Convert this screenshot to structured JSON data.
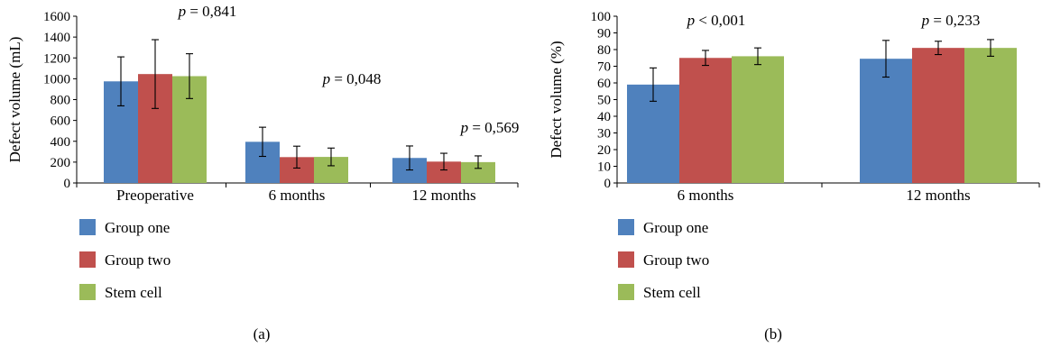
{
  "chart_data": [
    {
      "type": "bar",
      "panel_label": "(a)",
      "categories": [
        "Preoperative",
        "6 months",
        "12 months"
      ],
      "series": [
        {
          "name": "Group one",
          "color": "#4F81BD",
          "values": [
            975,
            395,
            240
          ],
          "errors": [
            235,
            140,
            115
          ]
        },
        {
          "name": "Group two",
          "color": "#C0504D",
          "values": [
            1045,
            248,
            205
          ],
          "errors": [
            330,
            105,
            80
          ]
        },
        {
          "name": "Stem cell",
          "color": "#9BBB59",
          "values": [
            1025,
            250,
            200
          ],
          "errors": [
            215,
            85,
            60
          ]
        }
      ],
      "ylabel": "Defect volume (mL)",
      "ylim": [
        0,
        1600
      ],
      "yticks": [
        "0",
        "200",
        "400",
        "600",
        "800",
        "1000",
        "1200",
        "1400",
        "1600"
      ],
      "annotations": [
        {
          "p": "p",
          "rest": " = 0,841",
          "category": 0
        },
        {
          "p": "p",
          "rest": " = 0,048",
          "category": 1
        },
        {
          "p": "p",
          "rest": " = 0,569",
          "category": 2
        }
      ],
      "legend_position": "bottom-left"
    },
    {
      "type": "bar",
      "panel_label": "(b)",
      "categories": [
        "6 months",
        "12 months"
      ],
      "series": [
        {
          "name": "Group one",
          "color": "#4F81BD",
          "values": [
            59,
            74.5
          ],
          "errors": [
            10,
            11
          ]
        },
        {
          "name": "Group two",
          "color": "#C0504D",
          "values": [
            75,
            81
          ],
          "errors": [
            4.5,
            4
          ]
        },
        {
          "name": "Stem cell",
          "color": "#9BBB59",
          "values": [
            76,
            81
          ],
          "errors": [
            5,
            5
          ]
        }
      ],
      "ylabel": "Defect volume (%)",
      "ylim": [
        0,
        100
      ],
      "yticks": [
        "0",
        "10",
        "20",
        "30",
        "40",
        "50",
        "60",
        "70",
        "80",
        "90",
        "100"
      ],
      "annotations": [
        {
          "p": "p",
          "rest": " < 0,001",
          "category": 0
        },
        {
          "p": "p",
          "rest": " = 0,233",
          "category": 1
        }
      ],
      "legend_position": "bottom-left"
    }
  ]
}
